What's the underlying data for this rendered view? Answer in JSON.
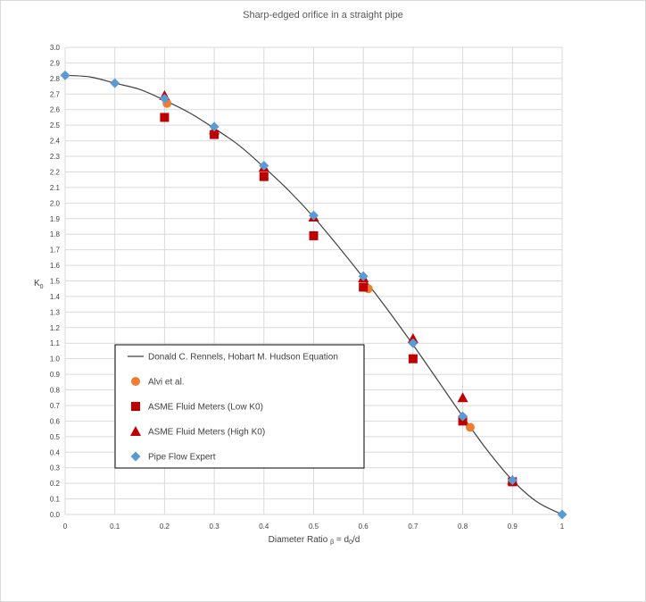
{
  "chart_data": {
    "type": "scatter",
    "title": "Sharp-edged orifice in a straight pipe",
    "xlabel": "Diameter Ratio",
    "xlabel_beta": "β",
    "xlabel_eq": "= d",
    "xlabel_sub": "0",
    "xlabel_tail": "/d",
    "ylabel": "K",
    "ylabel_sub": "0",
    "xlim": [
      0,
      1
    ],
    "ylim": [
      0,
      3
    ],
    "xticks": [
      "0",
      "0.1",
      "0.2",
      "0.3",
      "0.4",
      "0.5",
      "0.6",
      "0.7",
      "0.8",
      "0.9",
      "1"
    ],
    "yticks": [
      "0.0",
      "0.1",
      "0.2",
      "0.3",
      "0.4",
      "0.5",
      "0.6",
      "0.7",
      "0.8",
      "0.9",
      "1.0",
      "1.1",
      "1.2",
      "1.3",
      "1.4",
      "1.5",
      "1.6",
      "1.7",
      "1.8",
      "1.9",
      "2.0",
      "2.1",
      "2.2",
      "2.3",
      "2.4",
      "2.5",
      "2.6",
      "2.7",
      "2.8",
      "2.9",
      "3.0"
    ],
    "grid": true,
    "legend_position": "lower-left",
    "series": [
      {
        "name": "Donald C. Rennels, Hobart M. Hudson Equation",
        "kind": "line",
        "color": "#404040",
        "x": [
          0,
          0.05,
          0.1,
          0.15,
          0.2,
          0.25,
          0.3,
          0.35,
          0.4,
          0.45,
          0.5,
          0.55,
          0.6,
          0.65,
          0.7,
          0.75,
          0.8,
          0.85,
          0.9,
          0.95,
          1.0
        ],
        "y": [
          2.82,
          2.81,
          2.77,
          2.73,
          2.66,
          2.58,
          2.48,
          2.37,
          2.23,
          2.08,
          1.91,
          1.72,
          1.52,
          1.31,
          1.09,
          0.86,
          0.63,
          0.41,
          0.22,
          0.08,
          0.0
        ]
      },
      {
        "name": "Alvi et al.",
        "kind": "circle",
        "color": "#ED7D31",
        "x": [
          0.205,
          0.61,
          0.815
        ],
        "y": [
          2.64,
          1.45,
          0.56
        ]
      },
      {
        "name": "ASME Fluid Meters (Low K0)",
        "kind": "square",
        "color": "#C00000",
        "x": [
          0.2,
          0.3,
          0.4,
          0.5,
          0.6,
          0.7,
          0.8,
          0.9
        ],
        "y": [
          2.55,
          2.44,
          2.17,
          1.79,
          1.46,
          1.0,
          0.6,
          0.21
        ]
      },
      {
        "name": "ASME Fluid Meters (High K0)",
        "kind": "triangle",
        "color": "#C00000",
        "x": [
          0.2,
          0.3,
          0.4,
          0.5,
          0.6,
          0.7,
          0.8,
          0.9
        ],
        "y": [
          2.69,
          2.47,
          2.23,
          1.91,
          1.52,
          1.13,
          0.75,
          0.22
        ]
      },
      {
        "name": "Pipe Flow Expert",
        "kind": "diamond",
        "color": "#5B9BD5",
        "x": [
          0,
          0.1,
          0.2,
          0.3,
          0.4,
          0.5,
          0.6,
          0.7,
          0.8,
          0.9,
          1.0
        ],
        "y": [
          2.82,
          2.77,
          2.67,
          2.49,
          2.24,
          1.92,
          1.53,
          1.1,
          0.63,
          0.22,
          0.0
        ]
      }
    ]
  }
}
